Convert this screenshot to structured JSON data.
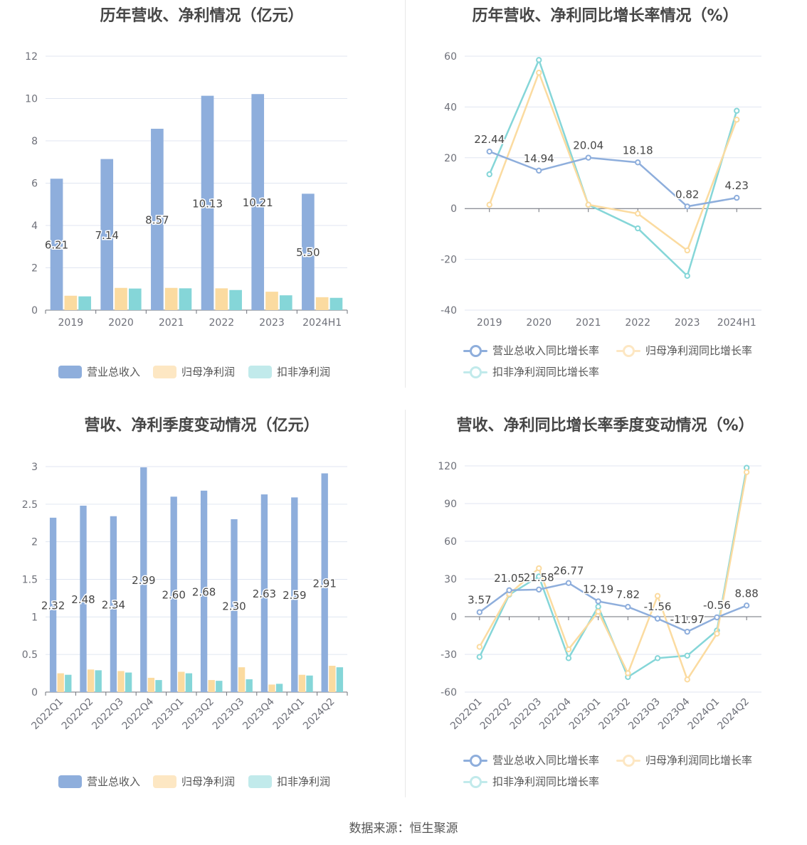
{
  "colors": {
    "revenue": "#8eaedc",
    "net_profit": "#fbdba0",
    "deducted": "#85d6d8",
    "axis": "#6e7079",
    "grid": "#e0e6f1",
    "label": "#464646"
  },
  "source": "数据来源：恒生聚源",
  "chart_data": [
    {
      "id": "p1",
      "type": "bar",
      "title": "历年营收、净利情况（亿元）",
      "categories": [
        "2019",
        "2020",
        "2021",
        "2022",
        "2023",
        "2024H1"
      ],
      "ylim": [
        0,
        12
      ],
      "yticks": [
        "0",
        "2",
        "4",
        "6",
        "8",
        "10",
        "12"
      ],
      "series": [
        {
          "name": "营业总收入",
          "color_key": "revenue",
          "values": [
            6.21,
            7.14,
            8.57,
            10.13,
            10.21,
            5.5
          ],
          "labels": [
            "6.21",
            "7.14",
            "8.57",
            "10.13",
            "10.21",
            "5.50"
          ]
        },
        {
          "name": "归母净利润",
          "color_key": "net_profit",
          "values": [
            0.68,
            1.05,
            1.05,
            1.03,
            0.87,
            0.61
          ]
        },
        {
          "name": "扣非净利润",
          "color_key": "deducted",
          "values": [
            0.65,
            1.02,
            1.03,
            0.95,
            0.7,
            0.58
          ]
        }
      ]
    },
    {
      "id": "p2",
      "type": "line",
      "title": "历年营收、净利同比增长率情况（%）",
      "categories": [
        "2019",
        "2020",
        "2021",
        "2022",
        "2023",
        "2024H1"
      ],
      "ylim": [
        -40,
        60
      ],
      "yticks": [
        "-40",
        "-20",
        "0",
        "20",
        "40",
        "60"
      ],
      "series": [
        {
          "name": "营业总收入同比增长率",
          "color_key": "revenue",
          "values": [
            22.44,
            14.94,
            20.04,
            18.18,
            0.82,
            4.23
          ],
          "labels": [
            "22.44",
            "14.94",
            "20.04",
            "18.18",
            "0.82",
            "4.23"
          ]
        },
        {
          "name": "归母净利润同比增长率",
          "color_key": "net_profit",
          "values": [
            1.5,
            53.5,
            1.5,
            -2.0,
            -16.5,
            35.0
          ]
        },
        {
          "name": "扣非净利润同比增长率",
          "color_key": "deducted",
          "values": [
            13.5,
            58.5,
            1.5,
            -7.8,
            -26.5,
            38.5
          ]
        }
      ]
    },
    {
      "id": "p3",
      "type": "bar",
      "title": "营收、净利季度变动情况（亿元）",
      "categories": [
        "2022Q1",
        "2022Q2",
        "2022Q3",
        "2022Q4",
        "2023Q1",
        "2023Q2",
        "2023Q3",
        "2023Q4",
        "2024Q1",
        "2024Q2"
      ],
      "ylim": [
        0,
        3
      ],
      "yticks": [
        "0",
        "0.5",
        "1",
        "1.5",
        "2",
        "2.5",
        "3"
      ],
      "series": [
        {
          "name": "营业总收入",
          "color_key": "revenue",
          "values": [
            2.32,
            2.48,
            2.34,
            2.99,
            2.6,
            2.68,
            2.3,
            2.63,
            2.59,
            2.91
          ],
          "labels": [
            "2.32",
            "2.48",
            "2.34",
            "2.99",
            "2.60",
            "2.68",
            "2.30",
            "2.63",
            "2.59",
            "2.91"
          ]
        },
        {
          "name": "归母净利润",
          "color_key": "net_profit",
          "values": [
            0.25,
            0.3,
            0.28,
            0.19,
            0.27,
            0.16,
            0.33,
            0.1,
            0.23,
            0.35
          ]
        },
        {
          "name": "扣非净利润",
          "color_key": "deducted",
          "values": [
            0.23,
            0.29,
            0.26,
            0.16,
            0.25,
            0.15,
            0.17,
            0.11,
            0.22,
            0.33
          ]
        }
      ]
    },
    {
      "id": "p4",
      "type": "line",
      "title": "营收、净利同比增长率季度变动情况（%）",
      "categories": [
        "2022Q1",
        "2022Q2",
        "2022Q3",
        "2022Q4",
        "2023Q1",
        "2023Q2",
        "2023Q3",
        "2023Q4",
        "2024Q1",
        "2024Q2"
      ],
      "ylim": [
        -60,
        120
      ],
      "yticks": [
        "-60",
        "-30",
        "0",
        "30",
        "60",
        "90",
        "120"
      ],
      "series": [
        {
          "name": "营业总收入同比增长率",
          "color_key": "revenue",
          "values": [
            3.57,
            21.05,
            21.58,
            26.77,
            12.19,
            7.82,
            -1.56,
            -11.97,
            -0.56,
            8.88
          ],
          "labels": [
            "3.57",
            "21.05",
            "21.58",
            "26.77",
            "12.19",
            "7.82",
            "-1.56",
            "-11.97",
            "-0.56",
            "8.88"
          ]
        },
        {
          "name": "归母净利润同比增长率",
          "color_key": "net_profit",
          "values": [
            -24.0,
            18.0,
            38.5,
            -26.0,
            4.0,
            -45.0,
            16.5,
            -50.0,
            -13.5,
            115.0
          ]
        },
        {
          "name": "扣非净利润同比增长率",
          "color_key": "deducted",
          "values": [
            -32.0,
            17.5,
            32.0,
            -33.0,
            8.0,
            -48.0,
            -33.0,
            -31.0,
            -11.0,
            118.5
          ]
        }
      ]
    }
  ]
}
